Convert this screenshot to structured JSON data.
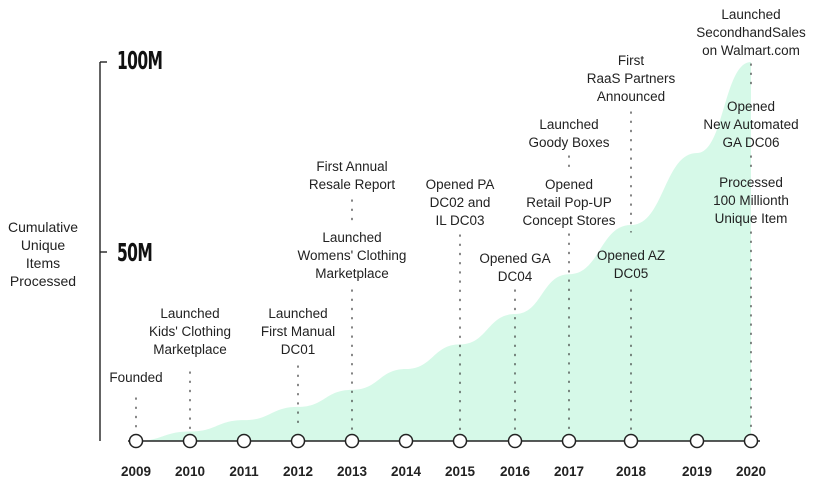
{
  "chart_data": {
    "type": "area",
    "title": "",
    "ylabel": [
      "Cumulative",
      "Unique",
      "Items",
      "Processed"
    ],
    "ylim": [
      0,
      100
    ],
    "y_ticks": [
      {
        "value": 100,
        "label": "100M"
      },
      {
        "value": 50,
        "label": "50M"
      }
    ],
    "x_categories": [
      "2009",
      "2010",
      "2011",
      "2012",
      "2013",
      "2014",
      "2015",
      "2016",
      "2017",
      "2018",
      "2019",
      "2020"
    ],
    "area_fill": "#d6f9e8",
    "series": [
      {
        "name": "Cumulative Unique Items Processed (M)",
        "x": [
          2009,
          2010,
          2011,
          2012,
          2013,
          2014,
          2015,
          2016,
          2017,
          2018,
          2019,
          2020
        ],
        "values": [
          0,
          2.5,
          5.5,
          9,
          13.5,
          19,
          25.5,
          33.5,
          44,
          57,
          76,
          100
        ]
      }
    ],
    "events": [
      {
        "year": "2009",
        "lines": [
          "Founded"
        ]
      },
      {
        "year": "2010",
        "lines": [
          "Launched",
          "Kids' Clothing",
          "Marketplace"
        ]
      },
      {
        "year": "2012",
        "lines": [
          "Launched",
          "First Manual",
          "DC01"
        ]
      },
      {
        "year": "2013",
        "lines": [
          "Launched",
          "Womens' Clothing",
          "Marketplace"
        ]
      },
      {
        "year": "2013",
        "lines": [
          "First Annual",
          "Resale Report"
        ]
      },
      {
        "year": "2015",
        "lines": [
          "Opened PA",
          "DC02 and",
          "IL DC03"
        ]
      },
      {
        "year": "2016",
        "lines": [
          "Opened GA",
          "DC04"
        ]
      },
      {
        "year": "2017",
        "lines": [
          "Opened",
          "Retail Pop-UP",
          "Concept Stores"
        ]
      },
      {
        "year": "2017",
        "lines": [
          "Launched",
          "Goody Boxes"
        ]
      },
      {
        "year": "2018",
        "lines": [
          "Opened AZ",
          "DC05"
        ]
      },
      {
        "year": "2018",
        "lines": [
          "First",
          "RaaS Partners",
          "Announced"
        ]
      },
      {
        "year": "2020",
        "lines": [
          "Processed",
          "100 Millionth",
          "Unique Item"
        ]
      },
      {
        "year": "2020",
        "lines": [
          "Opened",
          "New Automated",
          "GA DC06"
        ]
      },
      {
        "year": "2020",
        "lines": [
          "Launched",
          "SecondhandSales",
          "on Walmart.com"
        ]
      }
    ]
  }
}
